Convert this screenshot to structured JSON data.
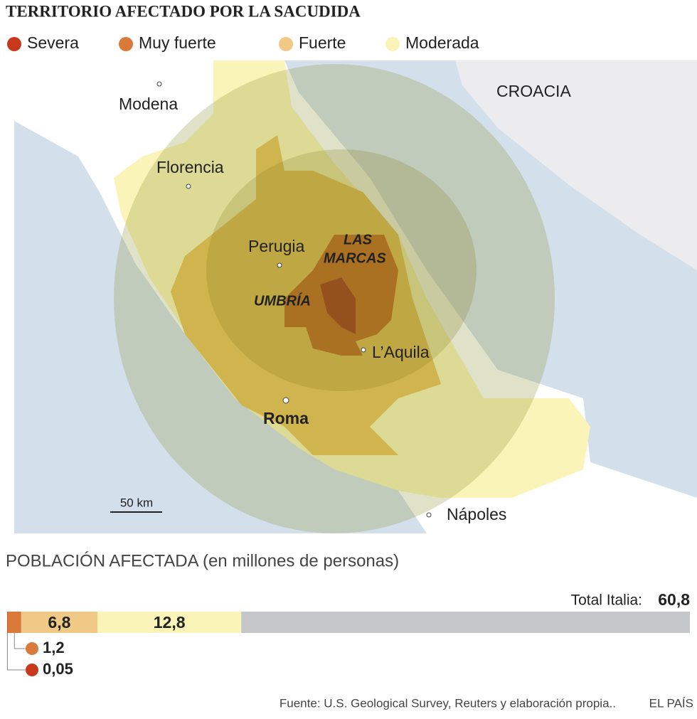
{
  "title": "TERRITORIO AFECTADO POR LA SACUDIDA",
  "map": {
    "places": [
      "Modena",
      "Florencia",
      "Perugia",
      "L’Aquila",
      "Roma",
      "Nápoles",
      "CROACIA"
    ],
    "regions": [
      [
        "LAS",
        "MARCAS"
      ],
      "UMBRÍA"
    ],
    "scale": "50 km"
  },
  "population": {
    "title": "POBLACIÓN AFECTADA (en millones de personas)",
    "type": "bar",
    "series": [
      {
        "name": "Severa",
        "color": "#c8381c",
        "value": 0.05,
        "value_label": "0,05"
      },
      {
        "name": "Muy fuerte",
        "color": "#d97a3b",
        "value": 1.2,
        "value_label": "1,2"
      },
      {
        "name": "Fuerte",
        "color": "#f0c987",
        "value": 6.8,
        "value_label": "6,8"
      },
      {
        "name": "Moderada",
        "color": "#fbf4b8",
        "value": 12.8,
        "value_label": "12,8"
      }
    ],
    "total_name": "Total Italia:",
    "total": 60.8,
    "total_label": "60,8",
    "total_color": "#c6c7cb"
  },
  "source": "Fuente: U.S. Geological Survey, Reuters y elaboración propia..",
  "brand": "EL PAÍS"
}
